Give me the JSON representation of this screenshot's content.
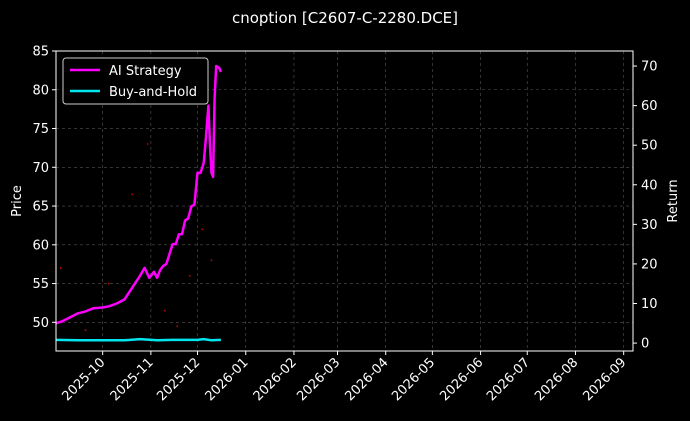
{
  "chart_data": {
    "type": "line",
    "title": "cnoption [C2607-C-2280.DCE]",
    "ylabel": "Price",
    "y2label": "Return",
    "ylim": [
      46.3,
      85
    ],
    "y2lim": [
      -2,
      73.8
    ],
    "xlim": [
      "2025-09-01",
      "2026-09-07"
    ],
    "yticks": [
      50,
      55,
      60,
      65,
      70,
      75,
      80,
      85
    ],
    "y2ticks": [
      0,
      10,
      20,
      30,
      40,
      50,
      60,
      70
    ],
    "xticks": [
      "2025-10",
      "2025-11",
      "2025-12",
      "2026-01",
      "2026-02",
      "2026-03",
      "2026-04",
      "2026-05",
      "2026-06",
      "2026-07",
      "2026-08",
      "2026-09"
    ],
    "grid": true,
    "legend_position": "upper-left",
    "colors": {
      "background": "#000000",
      "strategy": "#ff00ff",
      "buyhold": "#00e5ee",
      "grid": "#555555",
      "frame": "#ffffff",
      "scatter": "#ff0000"
    },
    "series": [
      {
        "name": "AI Strategy",
        "axis": "right",
        "color": "#ff00ff",
        "x": [
          "2025-09-01",
          "2025-09-05",
          "2025-09-10",
          "2025-09-15",
          "2025-09-20",
          "2025-09-25",
          "2025-10-01",
          "2025-10-05",
          "2025-10-10",
          "2025-10-15",
          "2025-10-20",
          "2025-10-25",
          "2025-10-28",
          "2025-10-31",
          "2025-11-03",
          "2025-11-05",
          "2025-11-07",
          "2025-11-09",
          "2025-11-11",
          "2025-11-13",
          "2025-11-15",
          "2025-11-17",
          "2025-11-19",
          "2025-11-21",
          "2025-11-23",
          "2025-11-25",
          "2025-11-27",
          "2025-11-29",
          "2025-12-01",
          "2025-12-03",
          "2025-12-05",
          "2025-12-06",
          "2025-12-07",
          "2025-12-08",
          "2025-12-09",
          "2025-12-10",
          "2025-12-11",
          "2025-12-12",
          "2025-12-13",
          "2025-12-15",
          "2025-12-16"
        ],
        "values": [
          5.0,
          5.5,
          6.5,
          7.5,
          8.0,
          8.8,
          9.0,
          9.3,
          10.0,
          11.0,
          14.0,
          17.0,
          19.0,
          16.5,
          18.0,
          16.5,
          18.5,
          19.5,
          20.0,
          22.5,
          25.0,
          25.0,
          27.5,
          27.5,
          31.0,
          31.5,
          34.5,
          35.0,
          43.0,
          43.0,
          45.5,
          50.0,
          55.0,
          60.0,
          50.0,
          43.0,
          42.0,
          62.0,
          70.0,
          69.5,
          68.5
        ]
      },
      {
        "name": "Buy-and-Hold",
        "axis": "right",
        "color": "#00e5ee",
        "x": [
          "2025-09-01",
          "2025-09-15",
          "2025-10-01",
          "2025-10-15",
          "2025-10-25",
          "2025-11-05",
          "2025-11-15",
          "2025-11-25",
          "2025-12-01",
          "2025-12-05",
          "2025-12-10",
          "2025-12-16"
        ],
        "values": [
          0.8,
          0.7,
          0.7,
          0.7,
          1.0,
          0.7,
          0.8,
          0.8,
          0.8,
          1.0,
          0.7,
          0.8
        ]
      },
      {
        "name": "",
        "axis": "left",
        "color": "#ff0000",
        "style": "points",
        "x": [
          "2025-09-04",
          "2025-09-20",
          "2025-10-05",
          "2025-10-20",
          "2025-10-30",
          "2025-11-10",
          "2025-11-18",
          "2025-11-26",
          "2025-12-04",
          "2025-12-10"
        ],
        "values": [
          57,
          49,
          55,
          66.5,
          73,
          51.5,
          49.5,
          56,
          62,
          58
        ]
      }
    ],
    "legend": [
      "AI Strategy",
      "Buy-and-Hold"
    ]
  }
}
